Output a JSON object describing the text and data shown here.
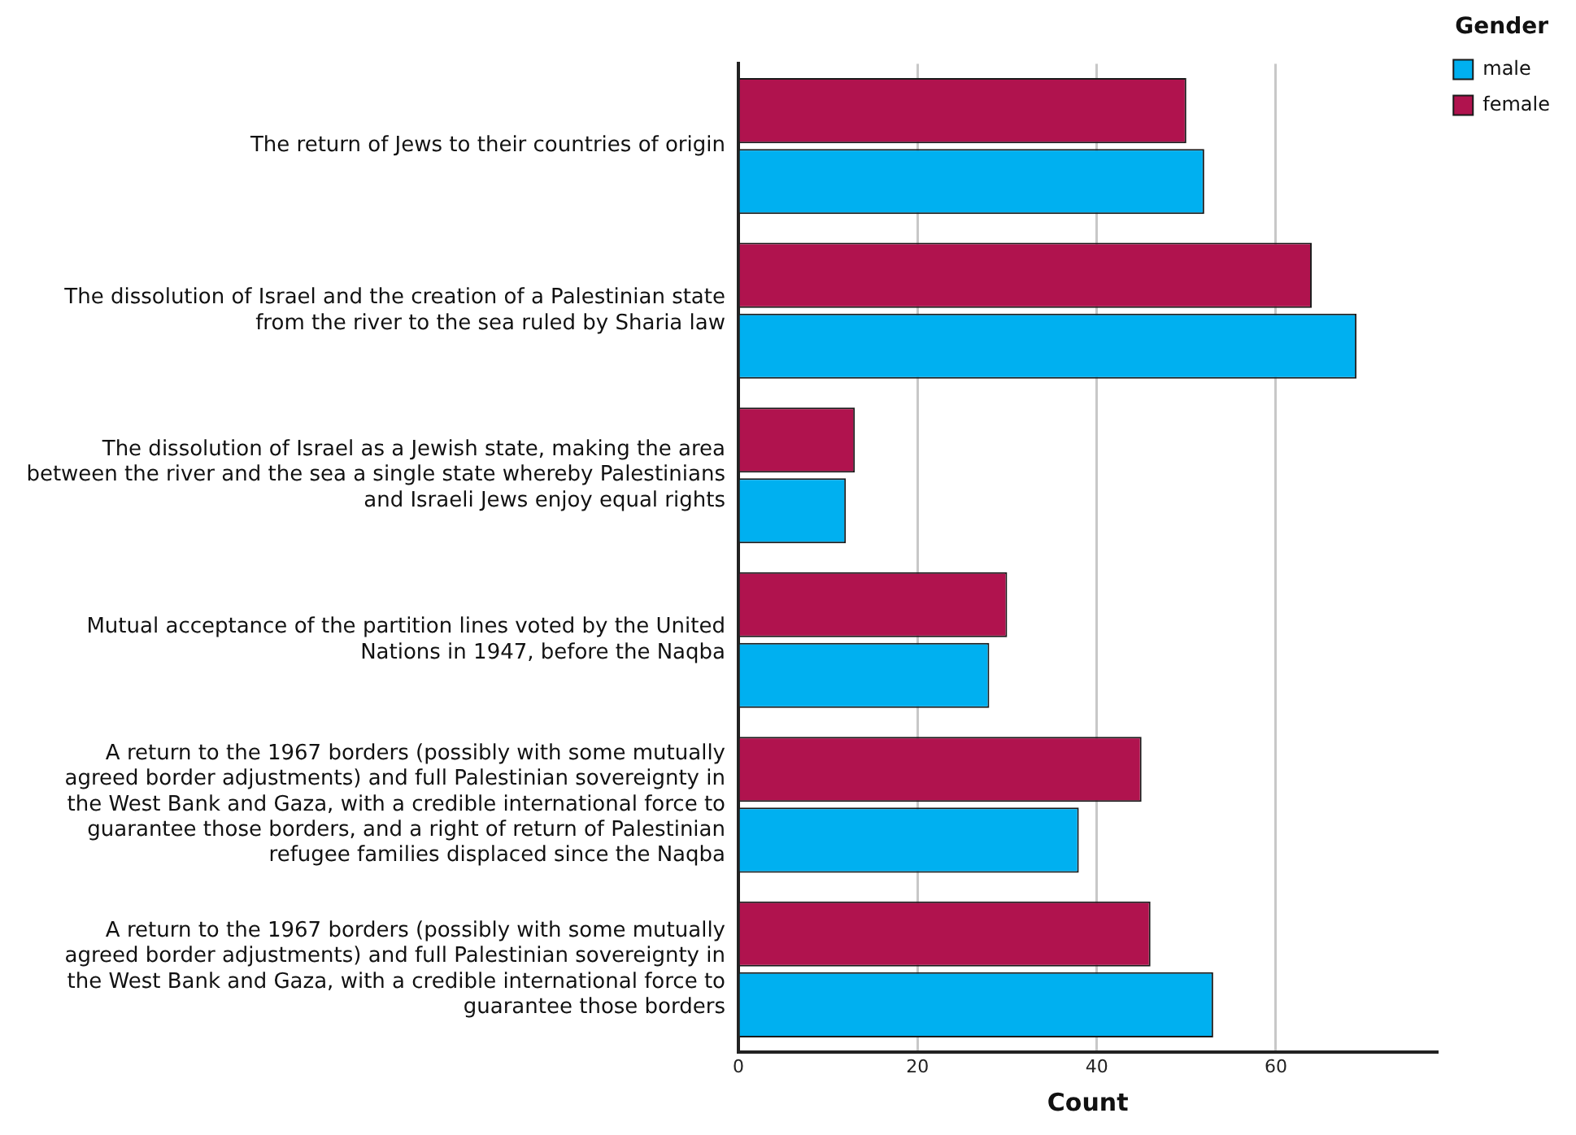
{
  "chart_data": {
    "type": "bar",
    "orientation": "horizontal",
    "xlabel": "Count",
    "legend_title": "Gender",
    "legend": "top right",
    "grid": "x",
    "categories": [
      "The return of Jews to their countries of origin",
      "The dissolution of Israel and the creation of a Palestinian state from the river to the sea ruled by Sharia law",
      "The dissolution of Israel as a Jewish state, making the area between the river and the sea a single state whereby Palestinians and Israeli Jews enjoy equal rights",
      "Mutual acceptance of the partition lines voted by the United Nations in 1947, before the Naqba",
      "A return to the 1967 borders (possibly with some mutually agreed border adjustments) and full Palestinian sovereignty in the West Bank and Gaza, with a credible international force to guarantee those borders, and a right of return of Palestinian refugee families displaced since the Naqba",
      "A return to the 1967 borders (possibly with some mutually agreed border adjustments) and full Palestinian sovereignty in the West Bank and Gaza, with a credible international force to guarantee those borders"
    ],
    "series": [
      {
        "name": "male",
        "color": "#00b0f0",
        "values": [
          52,
          69,
          12,
          28,
          38,
          53
        ]
      },
      {
        "name": "female",
        "color": "#b0134e",
        "values": [
          50,
          64,
          13,
          30,
          45,
          46
        ]
      }
    ],
    "xlim": [
      0,
      78
    ],
    "xticks": [
      0,
      20,
      40,
      60
    ]
  }
}
